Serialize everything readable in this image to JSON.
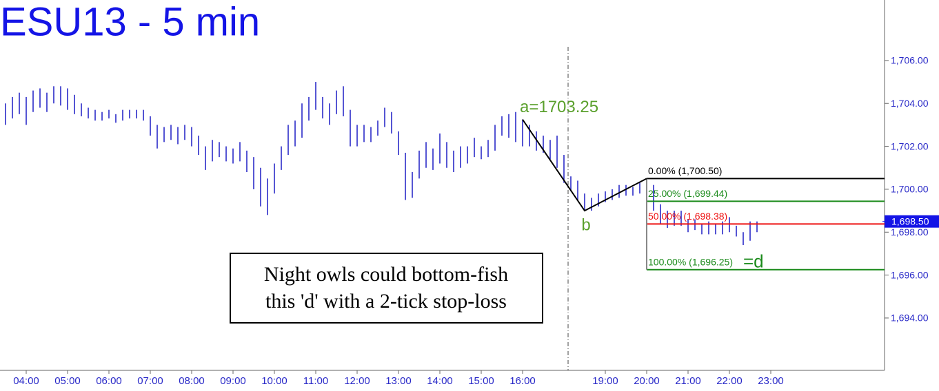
{
  "chart_data": {
    "type": "price-bars",
    "title": "ESU13 - 5 min",
    "bar_color": "#2a2ac8",
    "bars": [
      {
        "time": "03:30",
        "high": 1704.0,
        "low": 1703.0
      },
      {
        "time": "03:40",
        "high": 1704.3,
        "low": 1703.3
      },
      {
        "time": "03:50",
        "high": 1704.5,
        "low": 1703.5
      },
      {
        "time": "04:00",
        "high": 1704.3,
        "low": 1703.0
      },
      {
        "time": "04:10",
        "high": 1704.6,
        "low": 1703.6
      },
      {
        "time": "04:20",
        "high": 1704.7,
        "low": 1703.8
      },
      {
        "time": "04:30",
        "high": 1704.5,
        "low": 1703.6
      },
      {
        "time": "04:40",
        "high": 1704.8,
        "low": 1704.0
      },
      {
        "time": "04:50",
        "high": 1704.8,
        "low": 1703.9
      },
      {
        "time": "05:00",
        "high": 1704.7,
        "low": 1703.7
      },
      {
        "time": "05:10",
        "high": 1704.4,
        "low": 1703.5
      },
      {
        "time": "05:20",
        "high": 1704.0,
        "low": 1703.4
      },
      {
        "time": "05:30",
        "high": 1703.8,
        "low": 1703.3
      },
      {
        "time": "05:40",
        "high": 1703.7,
        "low": 1703.2
      },
      {
        "time": "05:50",
        "high": 1703.6,
        "low": 1703.2
      },
      {
        "time": "06:00",
        "high": 1703.7,
        "low": 1703.3
      },
      {
        "time": "06:10",
        "high": 1703.5,
        "low": 1703.1
      },
      {
        "time": "06:20",
        "high": 1703.7,
        "low": 1703.2
      },
      {
        "time": "06:30",
        "high": 1703.7,
        "low": 1703.3
      },
      {
        "time": "06:40",
        "high": 1703.7,
        "low": 1703.3
      },
      {
        "time": "06:50",
        "high": 1703.7,
        "low": 1703.2
      },
      {
        "time": "07:00",
        "high": 1703.4,
        "low": 1702.5
      },
      {
        "time": "07:10",
        "high": 1703.0,
        "low": 1701.9
      },
      {
        "time": "07:20",
        "high": 1702.9,
        "low": 1702.2
      },
      {
        "time": "07:30",
        "high": 1703.0,
        "low": 1702.3
      },
      {
        "time": "07:40",
        "high": 1702.9,
        "low": 1702.1
      },
      {
        "time": "07:50",
        "high": 1703.0,
        "low": 1702.3
      },
      {
        "time": "08:00",
        "high": 1702.9,
        "low": 1702.0
      },
      {
        "time": "08:10",
        "high": 1702.5,
        "low": 1701.6
      },
      {
        "time": "08:20",
        "high": 1702.0,
        "low": 1700.9
      },
      {
        "time": "08:30",
        "high": 1702.3,
        "low": 1701.3
      },
      {
        "time": "08:40",
        "high": 1702.2,
        "low": 1701.5
      },
      {
        "time": "08:50",
        "high": 1702.0,
        "low": 1701.3
      },
      {
        "time": "09:00",
        "high": 1701.9,
        "low": 1701.2
      },
      {
        "time": "09:10",
        "high": 1702.2,
        "low": 1701.3
      },
      {
        "time": "09:20",
        "high": 1701.8,
        "low": 1700.8
      },
      {
        "time": "09:30",
        "high": 1701.5,
        "low": 1700.0
      },
      {
        "time": "09:40",
        "high": 1701.0,
        "low": 1699.2
      },
      {
        "time": "09:50",
        "high": 1700.5,
        "low": 1698.8
      },
      {
        "time": "10:00",
        "high": 1701.2,
        "low": 1699.8
      },
      {
        "time": "10:10",
        "high": 1702.0,
        "low": 1700.9
      },
      {
        "time": "10:20",
        "high": 1703.0,
        "low": 1701.6
      },
      {
        "time": "10:30",
        "high": 1703.2,
        "low": 1702.0
      },
      {
        "time": "10:40",
        "high": 1704.0,
        "low": 1702.4
      },
      {
        "time": "10:50",
        "high": 1704.3,
        "low": 1703.2
      },
      {
        "time": "11:00",
        "high": 1705.0,
        "low": 1703.7
      },
      {
        "time": "11:10",
        "high": 1704.3,
        "low": 1703.3
      },
      {
        "time": "11:20",
        "high": 1704.0,
        "low": 1703.0
      },
      {
        "time": "11:30",
        "high": 1704.6,
        "low": 1703.5
      },
      {
        "time": "11:40",
        "high": 1704.8,
        "low": 1703.4
      },
      {
        "time": "11:50",
        "high": 1703.7,
        "low": 1702.0
      },
      {
        "time": "12:00",
        "high": 1703.0,
        "low": 1702.0
      },
      {
        "time": "12:10",
        "high": 1703.0,
        "low": 1702.2
      },
      {
        "time": "12:20",
        "high": 1702.9,
        "low": 1702.2
      },
      {
        "time": "12:30",
        "high": 1703.2,
        "low": 1702.5
      },
      {
        "time": "12:40",
        "high": 1703.8,
        "low": 1702.9
      },
      {
        "time": "12:50",
        "high": 1703.6,
        "low": 1702.6
      },
      {
        "time": "13:00",
        "high": 1702.7,
        "low": 1701.6
      },
      {
        "time": "13:10",
        "high": 1701.7,
        "low": 1699.5
      },
      {
        "time": "13:20",
        "high": 1700.8,
        "low": 1699.6
      },
      {
        "time": "13:30",
        "high": 1701.8,
        "low": 1700.5
      },
      {
        "time": "13:40",
        "high": 1702.2,
        "low": 1701.0
      },
      {
        "time": "13:50",
        "high": 1701.9,
        "low": 1700.9
      },
      {
        "time": "14:00",
        "high": 1702.6,
        "low": 1701.2
      },
      {
        "time": "14:10",
        "high": 1702.2,
        "low": 1701.0
      },
      {
        "time": "14:20",
        "high": 1701.8,
        "low": 1700.8
      },
      {
        "time": "14:30",
        "high": 1702.0,
        "low": 1701.0
      },
      {
        "time": "14:40",
        "high": 1702.0,
        "low": 1701.2
      },
      {
        "time": "14:50",
        "high": 1702.4,
        "low": 1701.5
      },
      {
        "time": "15:00",
        "high": 1702.0,
        "low": 1701.4
      },
      {
        "time": "15:10",
        "high": 1702.3,
        "low": 1701.5
      },
      {
        "time": "15:20",
        "high": 1703.0,
        "low": 1701.8
      },
      {
        "time": "15:30",
        "high": 1703.4,
        "low": 1702.5
      },
      {
        "time": "15:40",
        "high": 1703.5,
        "low": 1702.4
      },
      {
        "time": "15:50",
        "high": 1703.6,
        "low": 1702.2
      },
      {
        "time": "16:00",
        "high": 1703.25,
        "low": 1702.0
      },
      {
        "time": "16:10",
        "high": 1703.0,
        "low": 1702.0
      },
      {
        "time": "16:20",
        "high": 1702.7,
        "low": 1701.8
      },
      {
        "time": "16:30",
        "high": 1702.5,
        "low": 1701.7
      },
      {
        "time": "16:40",
        "high": 1702.3,
        "low": 1701.4
      },
      {
        "time": "16:50",
        "high": 1702.5,
        "low": 1701.0
      },
      {
        "time": "17:00",
        "high": 1701.6,
        "low": 1700.3
      },
      {
        "time": "18:10",
        "high": 1700.6,
        "low": 1699.9
      },
      {
        "time": "18:20",
        "high": 1700.4,
        "low": 1699.5
      },
      {
        "time": "18:30",
        "high": 1699.8,
        "low": 1699.0
      },
      {
        "time": "18:40",
        "high": 1699.6,
        "low": 1699.0
      },
      {
        "time": "18:50",
        "high": 1699.8,
        "low": 1699.2
      },
      {
        "time": "19:00",
        "high": 1699.9,
        "low": 1699.4
      },
      {
        "time": "19:10",
        "high": 1700.0,
        "low": 1699.5
      },
      {
        "time": "19:20",
        "high": 1700.2,
        "low": 1699.6
      },
      {
        "time": "19:30",
        "high": 1700.2,
        "low": 1699.7
      },
      {
        "time": "19:40",
        "high": 1700.1,
        "low": 1699.7
      },
      {
        "time": "19:50",
        "high": 1700.3,
        "low": 1699.8
      },
      {
        "time": "20:00",
        "high": 1700.5,
        "low": 1699.9
      },
      {
        "time": "20:10",
        "high": 1700.2,
        "low": 1699.0
      },
      {
        "time": "20:20",
        "high": 1699.3,
        "low": 1698.4
      },
      {
        "time": "20:30",
        "high": 1699.0,
        "low": 1698.2
      },
      {
        "time": "20:40",
        "high": 1699.0,
        "low": 1698.3
      },
      {
        "time": "20:50",
        "high": 1699.0,
        "low": 1698.3
      },
      {
        "time": "21:00",
        "high": 1698.6,
        "low": 1698.0
      },
      {
        "time": "21:10",
        "high": 1698.6,
        "low": 1698.1
      },
      {
        "time": "21:20",
        "high": 1698.4,
        "low": 1697.9
      },
      {
        "time": "21:30",
        "high": 1698.5,
        "low": 1697.9
      },
      {
        "time": "21:40",
        "high": 1698.4,
        "low": 1697.9
      },
      {
        "time": "21:50",
        "high": 1698.5,
        "low": 1697.9
      },
      {
        "time": "22:00",
        "high": 1698.7,
        "low": 1698.0
      },
      {
        "time": "22:10",
        "high": 1698.3,
        "low": 1697.8
      },
      {
        "time": "22:20",
        "high": 1698.0,
        "low": 1697.4
      },
      {
        "time": "22:30",
        "high": 1698.5,
        "low": 1697.6
      },
      {
        "time": "22:40",
        "high": 1698.5,
        "low": 1698.0
      }
    ],
    "xticks": [
      "04:00",
      "05:00",
      "06:00",
      "07:00",
      "08:00",
      "09:00",
      "10:00",
      "11:00",
      "12:00",
      "13:00",
      "14:00",
      "15:00",
      "16:00",
      "19:00",
      "20:00",
      "21:00",
      "22:00",
      "23:00"
    ],
    "ylim": [
      1691.56,
      1708.82
    ],
    "yticks": [
      {
        "value": 1706,
        "label": "1,706.00"
      },
      {
        "value": 1704,
        "label": "1,704.00"
      },
      {
        "value": 1702,
        "label": "1,702.00"
      },
      {
        "value": 1700,
        "label": "1,700.00"
      },
      {
        "value": 1698,
        "label": "1,698.00"
      },
      {
        "value": 1696,
        "label": "1,696.00"
      },
      {
        "value": 1694,
        "label": "1,694.00"
      }
    ],
    "last_price": {
      "value": 1698.5,
      "label": "1,698.50"
    },
    "pattern": [
      {
        "time": "16:00",
        "value": 1703.25,
        "label": "a=1703.25"
      },
      {
        "time": "18:30",
        "value": 1699.0,
        "label": "b"
      },
      {
        "time": "20:00",
        "value": 1700.5
      }
    ],
    "fib_levels": [
      {
        "value": 1700.5,
        "label": "0.00% (1,700.50)",
        "color": "#000000"
      },
      {
        "value": 1699.44,
        "label": "25.00% (1,699.44)",
        "color": "#1a8a1a"
      },
      {
        "value": 1698.38,
        "label": "50.00% (1,698.38)",
        "color": "#ee1111"
      },
      {
        "value": 1696.25,
        "label": "100.00% (1,696.25)",
        "color": "#1a8a1a"
      }
    ],
    "target_label": "=d",
    "note": [
      "Night owls could bottom-fish",
      "this 'd' with a 2-tick stop-loss"
    ]
  }
}
